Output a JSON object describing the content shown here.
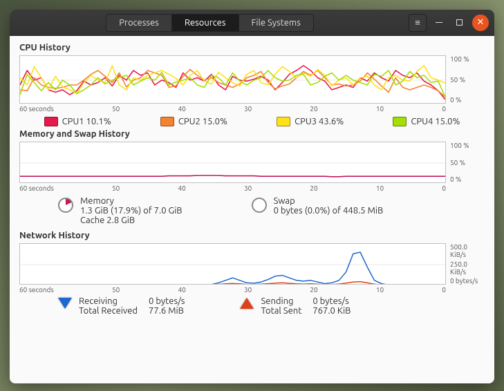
{
  "titlebar": {
    "tabs": [
      "Processes",
      "Resources",
      "File Systems"
    ],
    "active_tab": 1
  },
  "xaxis_labels": [
    "60 seconds",
    "50",
    "40",
    "30",
    "20",
    "10",
    "0"
  ],
  "cpu": {
    "title": "CPU History",
    "chart": {
      "height": 70,
      "ylim": [
        0,
        100
      ],
      "ylabels": [
        "100 %",
        "50 %",
        "0 %"
      ],
      "grid_color": "#e8e8e8",
      "background_color": "#ffffff",
      "line_width": 1.6,
      "series": [
        {
          "name": "CPU1",
          "color": "#e6194b",
          "values": [
            40,
            70,
            50,
            55,
            30,
            25,
            30,
            20,
            28,
            48,
            40,
            45,
            55,
            38,
            60,
            50,
            70,
            60,
            65,
            40,
            50,
            45,
            35,
            65,
            50,
            55,
            48,
            62,
            40,
            30,
            58,
            50,
            48,
            52,
            58,
            50,
            30,
            45,
            62,
            70,
            80,
            70,
            55,
            48,
            30,
            35,
            40,
            35,
            55,
            48,
            65,
            55,
            48,
            70,
            60,
            55,
            65,
            48,
            40,
            28,
            10
          ]
        },
        {
          "name": "CPU2",
          "color": "#f58231",
          "values": [
            30,
            28,
            55,
            40,
            35,
            33,
            35,
            40,
            40,
            50,
            62,
            70,
            58,
            45,
            65,
            36,
            50,
            55,
            70,
            65,
            60,
            35,
            38,
            58,
            72,
            60,
            50,
            55,
            45,
            40,
            35,
            42,
            55,
            60,
            68,
            45,
            32,
            38,
            42,
            55,
            68,
            60,
            70,
            55,
            40,
            42,
            38,
            40,
            48,
            65,
            52,
            38,
            25,
            55,
            35,
            30,
            35,
            40,
            35,
            28,
            15
          ]
        },
        {
          "name": "CPU3",
          "color": "#ffe119",
          "values": [
            55,
            40,
            78,
            55,
            30,
            58,
            36,
            30,
            22,
            45,
            60,
            50,
            45,
            80,
            40,
            30,
            55,
            50,
            60,
            65,
            70,
            62,
            54,
            40,
            60,
            70,
            48,
            42,
            66,
            55,
            45,
            38,
            62,
            70,
            45,
            40,
            62,
            78,
            68,
            55,
            65,
            58,
            72,
            60,
            38,
            50,
            55,
            40,
            55,
            58,
            40,
            30,
            55,
            60,
            50,
            48,
            68,
            80,
            55,
            50,
            44
          ]
        },
        {
          "name": "CPU4",
          "color": "#a4de02",
          "values": [
            20,
            62,
            45,
            28,
            45,
            30,
            50,
            40,
            22,
            30,
            40,
            55,
            42,
            50,
            55,
            60,
            40,
            48,
            55,
            50,
            66,
            40,
            46,
            50,
            55,
            40,
            35,
            60,
            55,
            40,
            65,
            48,
            40,
            50,
            55,
            70,
            55,
            48,
            50,
            60,
            62,
            40,
            45,
            58,
            65,
            50,
            60,
            50,
            45,
            40,
            62,
            58,
            70,
            40,
            48,
            68,
            55,
            60,
            45,
            48,
            15
          ]
        }
      ]
    },
    "legend": [
      {
        "label": "CPU1",
        "value": "10.1%",
        "color": "#e6194b"
      },
      {
        "label": "CPU2",
        "value": "15.0%",
        "color": "#f58231"
      },
      {
        "label": "CPU3",
        "value": "43.6%",
        "color": "#ffe119"
      },
      {
        "label": "CPU4",
        "value": "15.0%",
        "color": "#a4de02"
      }
    ]
  },
  "memory": {
    "title": "Memory and Swap History",
    "chart": {
      "height": 60,
      "ylim": [
        0,
        100
      ],
      "ylabels": [
        "100 %",
        "50 %",
        "0 %"
      ],
      "grid_color": "#e8e8e8",
      "background_color": "#ffffff",
      "line_width": 1.6,
      "series": [
        {
          "name": "Memory",
          "color": "#c2185b",
          "values": [
            18,
            18,
            18,
            18,
            18,
            18,
            18,
            18,
            18,
            18,
            18,
            18,
            18,
            18,
            18,
            18,
            18,
            18,
            18,
            18,
            18,
            19,
            19,
            19,
            19,
            20,
            20,
            20,
            20,
            19,
            19,
            19,
            19,
            19,
            18,
            18,
            18,
            18,
            18,
            18,
            18,
            18,
            18,
            18,
            17,
            17,
            18,
            18,
            18,
            18,
            18,
            18,
            18,
            18,
            18,
            18,
            18,
            18,
            18,
            18,
            18
          ]
        },
        {
          "name": "Swap",
          "color": "#2e7d32",
          "values": [
            0,
            0,
            0,
            0,
            0,
            0,
            0,
            0,
            0,
            0,
            0,
            0,
            0,
            0,
            0,
            0,
            0,
            0,
            0,
            0,
            0,
            0,
            0,
            0,
            0,
            0,
            0,
            0,
            0,
            0,
            0,
            0,
            0,
            0,
            0,
            0,
            0,
            0,
            0,
            0,
            0,
            0,
            0,
            0,
            0,
            0,
            0,
            0,
            0,
            0,
            0,
            0,
            0,
            0,
            0,
            0,
            0,
            0,
            0,
            0,
            0
          ]
        }
      ]
    },
    "mem_label": "Memory",
    "mem_line1": "1.3 GiB (17.9%) of 7.0 GiB",
    "mem_line2": "Cache 2.8 GiB",
    "mem_color": "#c2185b",
    "mem_pie_pct": 17.9,
    "swap_label": "Swap",
    "swap_line1": "0 bytes (0.0%) of 448.5 MiB",
    "swap_color": "#2e7d32",
    "swap_pie_pct": 0
  },
  "network": {
    "title": "Network History",
    "chart": {
      "height": 60,
      "ylim": [
        0,
        500
      ],
      "ylabels": [
        "500.0 KiB/s",
        "250.0 KiB/s",
        "0 bytes/s"
      ],
      "grid_color": "#e8e8e8",
      "background_color": "#ffffff",
      "line_width": 1.5,
      "series": [
        {
          "name": "Receiving",
          "color": "#1e66d0",
          "values": [
            0,
            0,
            0,
            0,
            0,
            0,
            0,
            0,
            0,
            0,
            0,
            0,
            0,
            0,
            0,
            0,
            0,
            0,
            0,
            0,
            0,
            0,
            0,
            0,
            0,
            0,
            5,
            10,
            30,
            60,
            90,
            60,
            30,
            25,
            40,
            70,
            110,
            120,
            90,
            60,
            50,
            60,
            40,
            20,
            30,
            60,
            160,
            380,
            400,
            220,
            60,
            20,
            5,
            0,
            0,
            0,
            0,
            0,
            0,
            0,
            0
          ]
        },
        {
          "name": "Sending",
          "color": "#e04018",
          "values": [
            0,
            0,
            0,
            0,
            0,
            0,
            0,
            0,
            0,
            0,
            0,
            0,
            0,
            0,
            0,
            0,
            0,
            0,
            0,
            0,
            0,
            0,
            0,
            0,
            0,
            0,
            3,
            6,
            12,
            18,
            22,
            18,
            12,
            10,
            14,
            20,
            26,
            30,
            24,
            18,
            16,
            18,
            14,
            8,
            10,
            16,
            26,
            40,
            44,
            30,
            14,
            6,
            2,
            0,
            0,
            0,
            0,
            0,
            0,
            0,
            0
          ]
        }
      ]
    },
    "recv_color": "#1e66d0",
    "send_color": "#e04018",
    "recv_label": "Receiving",
    "recv_rate": "0 bytes/s",
    "recv_total_label": "Total Received",
    "recv_total": "77.6 MiB",
    "send_label": "Sending",
    "send_rate": "0 bytes/s",
    "send_total_label": "Total Sent",
    "send_total": "767.0 KiB"
  }
}
